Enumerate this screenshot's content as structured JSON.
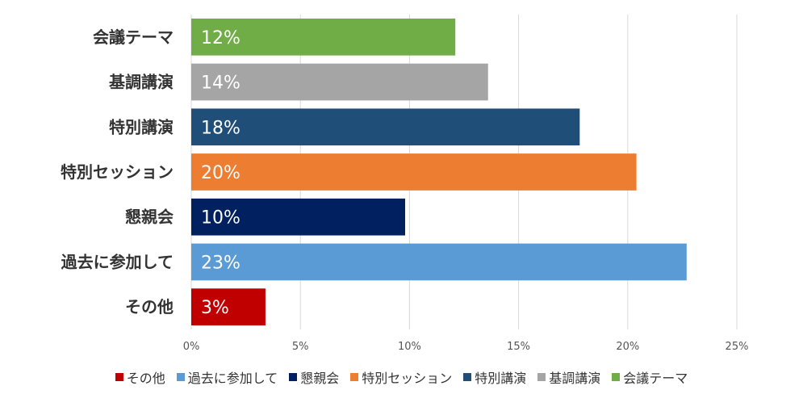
{
  "chart_data": {
    "type": "bar",
    "orientation": "horizontal",
    "categories": [
      "会議テーマ",
      "基調講演",
      "特別講演",
      "特別セッション",
      "懇親会",
      "過去に参加して",
      "その他"
    ],
    "values": [
      12.1,
      13.6,
      17.8,
      20.4,
      9.8,
      22.7,
      3.4
    ],
    "data_labels": [
      "12%",
      "14%",
      "18%",
      "20%",
      "10%",
      "23%",
      "3%"
    ],
    "colors": [
      "#70ad47",
      "#a5a5a5",
      "#1f4e79",
      "#ed7d31",
      "#002060",
      "#5b9bd5",
      "#c00000"
    ],
    "xlim": [
      0,
      25
    ],
    "x_ticks": [
      0,
      5,
      10,
      15,
      20,
      25
    ],
    "x_tick_labels": [
      "0%",
      "5%",
      "10%",
      "15%",
      "20%",
      "25%"
    ],
    "grid": true,
    "legend_position": "bottom",
    "legend": [
      {
        "label": "その他",
        "color": "#c00000"
      },
      {
        "label": "過去に参加して",
        "color": "#5b9bd5"
      },
      {
        "label": "懇親会",
        "color": "#002060"
      },
      {
        "label": "特別セッション",
        "color": "#ed7d31"
      },
      {
        "label": "特別講演",
        "color": "#1f4e79"
      },
      {
        "label": "基調講演",
        "color": "#a5a5a5"
      },
      {
        "label": "会議テーマ",
        "color": "#70ad47"
      }
    ]
  }
}
